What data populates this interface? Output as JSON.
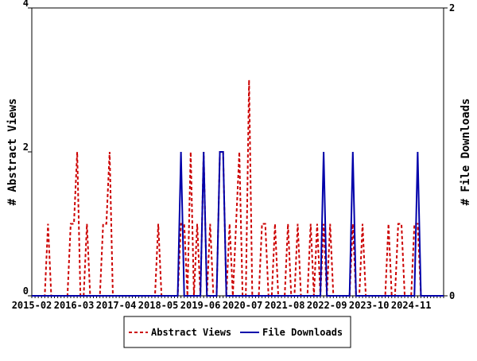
{
  "chart_data": {
    "type": "line",
    "y_label": "# Abstract Views",
    "y2_label": "# File Downloads",
    "categories": [
      "2015-02",
      null,
      null,
      null,
      null,
      null,
      null,
      null,
      null,
      null,
      null,
      null,
      null,
      "2016-03",
      null,
      null,
      null,
      null,
      null,
      null,
      null,
      null,
      null,
      null,
      null,
      null,
      "2017-04",
      null,
      null,
      null,
      null,
      null,
      null,
      null,
      null,
      null,
      null,
      null,
      null,
      "2018-05",
      null,
      null,
      null,
      null,
      null,
      null,
      null,
      null,
      null,
      null,
      null,
      null,
      "2019-06",
      null,
      null,
      null,
      null,
      null,
      null,
      null,
      null,
      null,
      null,
      null,
      null,
      "2020-07",
      null,
      null,
      null,
      null,
      null,
      null,
      null,
      null,
      null,
      null,
      null,
      null,
      "2021-08",
      null,
      null,
      null,
      null,
      null,
      null,
      null,
      null,
      null,
      null,
      null,
      null,
      "2022-09",
      null,
      null,
      null,
      null,
      null,
      null,
      null,
      null,
      null,
      null,
      null,
      null,
      "2023-10",
      null,
      null,
      null,
      null,
      null,
      null,
      null,
      null,
      null,
      null,
      null,
      null,
      "2024-11",
      null,
      null,
      null,
      null,
      null,
      null,
      null,
      null,
      null,
      null
    ],
    "series": [
      {
        "name": "Abstract Views",
        "color": "#cc0000",
        "dashed": true,
        "values": [
          0,
          0,
          0,
          0,
          0,
          1,
          0,
          0,
          0,
          0,
          0,
          0,
          1,
          1,
          2,
          0,
          0,
          1,
          0,
          0,
          0,
          0,
          1,
          1,
          2,
          0,
          0,
          0,
          0,
          0,
          0,
          0,
          0,
          0,
          0,
          0,
          0,
          0,
          0,
          1,
          0,
          0,
          0,
          0,
          0,
          0,
          1,
          1,
          0,
          2,
          0,
          1,
          0,
          2,
          0,
          1,
          0,
          0,
          2,
          2,
          0,
          1,
          0,
          1,
          2,
          0,
          0,
          3,
          0,
          0,
          0,
          1,
          1,
          0,
          0,
          1,
          0,
          0,
          0,
          1,
          0,
          0,
          1,
          0,
          0,
          0,
          1,
          0,
          1,
          0,
          1,
          0,
          1,
          0,
          0,
          0,
          0,
          0,
          0,
          1,
          0,
          0,
          1,
          0,
          0,
          0,
          0,
          0,
          0,
          0,
          1,
          0,
          0,
          1,
          1,
          0,
          0,
          0,
          1,
          1,
          0,
          0,
          0,
          0,
          0,
          0,
          0,
          0
        ]
      },
      {
        "name": "File Downloads",
        "color": "#0000aa",
        "dashed": false,
        "axis": "y2",
        "values": [
          0,
          0,
          0,
          0,
          0,
          0,
          0,
          0,
          0,
          0,
          0,
          0,
          0,
          0,
          0,
          0,
          0,
          0,
          0,
          0,
          0,
          0,
          0,
          0,
          0,
          0,
          0,
          0,
          0,
          0,
          0,
          0,
          0,
          0,
          0,
          0,
          0,
          0,
          0,
          0,
          0,
          0,
          0,
          0,
          0,
          0,
          1,
          0,
          0,
          0,
          0,
          0,
          0,
          1,
          0,
          0,
          0,
          0,
          1,
          1,
          0,
          0,
          0,
          0,
          0,
          0,
          0,
          0,
          0,
          0,
          0,
          0,
          0,
          0,
          0,
          0,
          0,
          0,
          0,
          0,
          0,
          0,
          0,
          0,
          0,
          0,
          0,
          0,
          0,
          0,
          1,
          0,
          0,
          0,
          0,
          0,
          0,
          0,
          0,
          1,
          0,
          0,
          0,
          0,
          0,
          0,
          0,
          0,
          0,
          0,
          0,
          0,
          0,
          0,
          0,
          0,
          0,
          0,
          0,
          1,
          0,
          0,
          0,
          0,
          0,
          0,
          0,
          0
        ]
      }
    ],
    "ylim": [
      0,
      4
    ],
    "yticks": [
      0,
      2,
      4
    ],
    "y2lim": [
      0,
      2
    ],
    "y2ticks": [
      0,
      2
    ],
    "legend": "bottom"
  }
}
